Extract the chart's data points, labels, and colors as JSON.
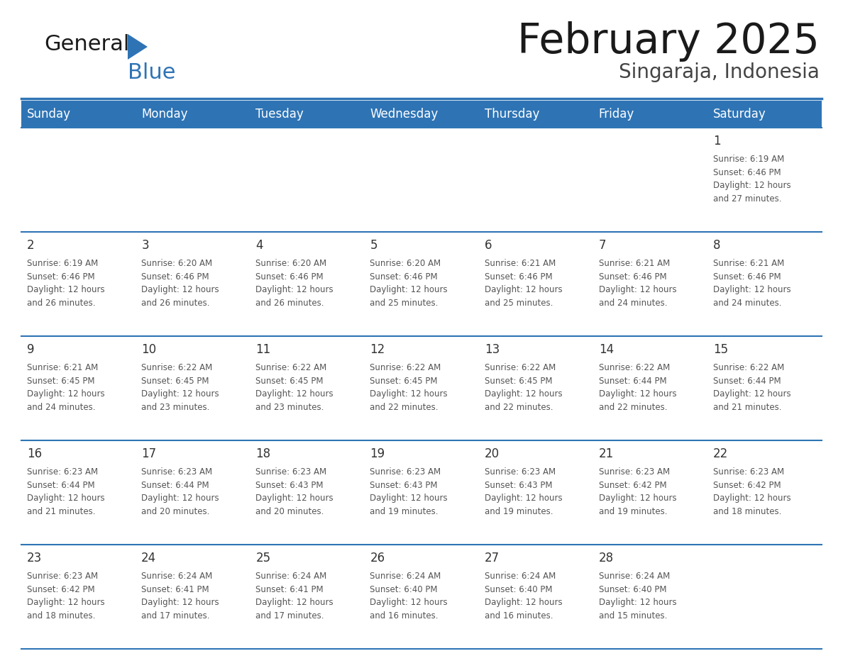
{
  "title": "February 2025",
  "subtitle": "Singaraja, Indonesia",
  "days_of_week": [
    "Sunday",
    "Monday",
    "Tuesday",
    "Wednesday",
    "Thursday",
    "Friday",
    "Saturday"
  ],
  "header_bg": "#2E74B5",
  "header_text_color": "#FFFFFF",
  "cell_bg_light": "#FFFFFF",
  "border_color": "#2E74B5",
  "day_num_color": "#333333",
  "info_text_color": "#555555",
  "title_color": "#1a1a1a",
  "subtitle_color": "#444444",
  "logo_general_color": "#1a1a1a",
  "logo_blue_color": "#2E74B5",
  "weeks": [
    [
      {
        "day": null,
        "info": null
      },
      {
        "day": null,
        "info": null
      },
      {
        "day": null,
        "info": null
      },
      {
        "day": null,
        "info": null
      },
      {
        "day": null,
        "info": null
      },
      {
        "day": null,
        "info": null
      },
      {
        "day": 1,
        "info": "Sunrise: 6:19 AM\nSunset: 6:46 PM\nDaylight: 12 hours\nand 27 minutes."
      }
    ],
    [
      {
        "day": 2,
        "info": "Sunrise: 6:19 AM\nSunset: 6:46 PM\nDaylight: 12 hours\nand 26 minutes."
      },
      {
        "day": 3,
        "info": "Sunrise: 6:20 AM\nSunset: 6:46 PM\nDaylight: 12 hours\nand 26 minutes."
      },
      {
        "day": 4,
        "info": "Sunrise: 6:20 AM\nSunset: 6:46 PM\nDaylight: 12 hours\nand 26 minutes."
      },
      {
        "day": 5,
        "info": "Sunrise: 6:20 AM\nSunset: 6:46 PM\nDaylight: 12 hours\nand 25 minutes."
      },
      {
        "day": 6,
        "info": "Sunrise: 6:21 AM\nSunset: 6:46 PM\nDaylight: 12 hours\nand 25 minutes."
      },
      {
        "day": 7,
        "info": "Sunrise: 6:21 AM\nSunset: 6:46 PM\nDaylight: 12 hours\nand 24 minutes."
      },
      {
        "day": 8,
        "info": "Sunrise: 6:21 AM\nSunset: 6:46 PM\nDaylight: 12 hours\nand 24 minutes."
      }
    ],
    [
      {
        "day": 9,
        "info": "Sunrise: 6:21 AM\nSunset: 6:45 PM\nDaylight: 12 hours\nand 24 minutes."
      },
      {
        "day": 10,
        "info": "Sunrise: 6:22 AM\nSunset: 6:45 PM\nDaylight: 12 hours\nand 23 minutes."
      },
      {
        "day": 11,
        "info": "Sunrise: 6:22 AM\nSunset: 6:45 PM\nDaylight: 12 hours\nand 23 minutes."
      },
      {
        "day": 12,
        "info": "Sunrise: 6:22 AM\nSunset: 6:45 PM\nDaylight: 12 hours\nand 22 minutes."
      },
      {
        "day": 13,
        "info": "Sunrise: 6:22 AM\nSunset: 6:45 PM\nDaylight: 12 hours\nand 22 minutes."
      },
      {
        "day": 14,
        "info": "Sunrise: 6:22 AM\nSunset: 6:44 PM\nDaylight: 12 hours\nand 22 minutes."
      },
      {
        "day": 15,
        "info": "Sunrise: 6:22 AM\nSunset: 6:44 PM\nDaylight: 12 hours\nand 21 minutes."
      }
    ],
    [
      {
        "day": 16,
        "info": "Sunrise: 6:23 AM\nSunset: 6:44 PM\nDaylight: 12 hours\nand 21 minutes."
      },
      {
        "day": 17,
        "info": "Sunrise: 6:23 AM\nSunset: 6:44 PM\nDaylight: 12 hours\nand 20 minutes."
      },
      {
        "day": 18,
        "info": "Sunrise: 6:23 AM\nSunset: 6:43 PM\nDaylight: 12 hours\nand 20 minutes."
      },
      {
        "day": 19,
        "info": "Sunrise: 6:23 AM\nSunset: 6:43 PM\nDaylight: 12 hours\nand 19 minutes."
      },
      {
        "day": 20,
        "info": "Sunrise: 6:23 AM\nSunset: 6:43 PM\nDaylight: 12 hours\nand 19 minutes."
      },
      {
        "day": 21,
        "info": "Sunrise: 6:23 AM\nSunset: 6:42 PM\nDaylight: 12 hours\nand 19 minutes."
      },
      {
        "day": 22,
        "info": "Sunrise: 6:23 AM\nSunset: 6:42 PM\nDaylight: 12 hours\nand 18 minutes."
      }
    ],
    [
      {
        "day": 23,
        "info": "Sunrise: 6:23 AM\nSunset: 6:42 PM\nDaylight: 12 hours\nand 18 minutes."
      },
      {
        "day": 24,
        "info": "Sunrise: 6:24 AM\nSunset: 6:41 PM\nDaylight: 12 hours\nand 17 minutes."
      },
      {
        "day": 25,
        "info": "Sunrise: 6:24 AM\nSunset: 6:41 PM\nDaylight: 12 hours\nand 17 minutes."
      },
      {
        "day": 26,
        "info": "Sunrise: 6:24 AM\nSunset: 6:40 PM\nDaylight: 12 hours\nand 16 minutes."
      },
      {
        "day": 27,
        "info": "Sunrise: 6:24 AM\nSunset: 6:40 PM\nDaylight: 12 hours\nand 16 minutes."
      },
      {
        "day": 28,
        "info": "Sunrise: 6:24 AM\nSunset: 6:40 PM\nDaylight: 12 hours\nand 15 minutes."
      },
      {
        "day": null,
        "info": null
      }
    ]
  ]
}
